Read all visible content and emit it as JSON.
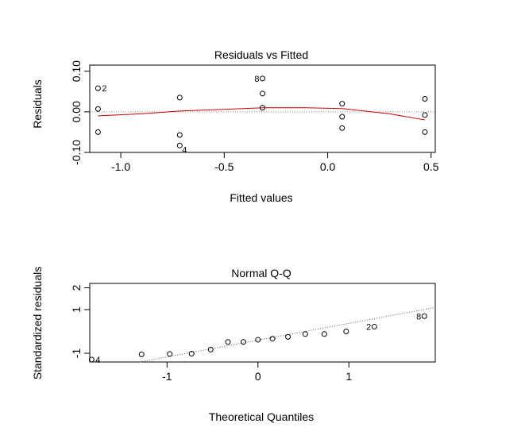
{
  "chart_data": [
    {
      "type": "scatter",
      "title": "Residuals vs Fitted",
      "xlabel": "Fitted values",
      "ylabel": "Residuals",
      "xlim": [
        -1.15,
        0.52
      ],
      "ylim": [
        -0.1,
        0.115
      ],
      "xticks": [
        -1.0,
        -0.5,
        0.0,
        0.5
      ],
      "xtick_labels": [
        "-1.0",
        "-0.5",
        "0.0",
        "0.5"
      ],
      "yticks": [
        -0.1,
        0.0,
        0.1
      ],
      "ytick_labels": [
        "-0.10",
        "0.00",
        "0.10"
      ],
      "points": [
        {
          "x": -1.11,
          "y": 0.058
        },
        {
          "x": -1.11,
          "y": 0.007
        },
        {
          "x": -1.11,
          "y": -0.05
        },
        {
          "x": -0.715,
          "y": 0.035
        },
        {
          "x": -0.715,
          "y": -0.057
        },
        {
          "x": -0.715,
          "y": -0.083
        },
        {
          "x": -0.315,
          "y": 0.082
        },
        {
          "x": -0.315,
          "y": 0.045
        },
        {
          "x": -0.315,
          "y": 0.01
        },
        {
          "x": 0.07,
          "y": 0.02
        },
        {
          "x": 0.07,
          "y": -0.012
        },
        {
          "x": 0.07,
          "y": -0.04
        },
        {
          "x": 0.47,
          "y": 0.032
        },
        {
          "x": 0.47,
          "y": -0.008
        },
        {
          "x": 0.47,
          "y": -0.05
        }
      ],
      "point_labels": [
        {
          "x": -1.11,
          "y": 0.058,
          "text": "2",
          "side": "right"
        },
        {
          "x": -0.715,
          "y": -0.083,
          "text": "4",
          "side": "below-right"
        },
        {
          "x": -0.315,
          "y": 0.082,
          "text": "8",
          "side": "left"
        }
      ],
      "smooth_line": {
        "color": "#cc0000",
        "x": [
          -1.11,
          -0.9,
          -0.715,
          -0.5,
          -0.315,
          -0.1,
          0.07,
          0.3,
          0.47
        ],
        "y": [
          -0.01,
          -0.005,
          0.002,
          0.006,
          0.01,
          0.01,
          0.008,
          -0.005,
          -0.02
        ]
      },
      "zero_line": true
    },
    {
      "type": "scatter",
      "title": "Normal Q-Q",
      "xlabel": "Theoretical Quantiles",
      "ylabel": "Standardized residuals",
      "xlim": [
        -1.85,
        1.95
      ],
      "ylim": [
        -1.4,
        2.2
      ],
      "xticks": [
        -1,
        0,
        1
      ],
      "xtick_labels": [
        "-1",
        "0",
        "1"
      ],
      "yticks": [
        -1,
        1,
        2
      ],
      "ytick_labels": [
        "-1",
        "1",
        "2"
      ],
      "points": [
        {
          "x": -1.83,
          "y": -1.72
        },
        {
          "x": -1.28,
          "y": -1.05
        },
        {
          "x": -0.97,
          "y": -1.03
        },
        {
          "x": -0.73,
          "y": -1.02
        },
        {
          "x": -0.52,
          "y": -0.83
        },
        {
          "x": -0.33,
          "y": -0.48
        },
        {
          "x": -0.16,
          "y": -0.48
        },
        {
          "x": 0.0,
          "y": -0.38
        },
        {
          "x": 0.16,
          "y": -0.33
        },
        {
          "x": 0.33,
          "y": -0.25
        },
        {
          "x": 0.52,
          "y": -0.12
        },
        {
          "x": 0.73,
          "y": -0.12
        },
        {
          "x": 0.97,
          "y": 0.0
        },
        {
          "x": 1.28,
          "y": 0.22
        },
        {
          "x": 1.83,
          "y": 0.7
        }
      ],
      "point_labels": [
        {
          "x": -1.83,
          "y": -1.72,
          "text": "4",
          "side": "right"
        },
        {
          "x": 1.28,
          "y": 0.22,
          "text": "2",
          "side": "left"
        },
        {
          "x": 1.83,
          "y": 0.7,
          "text": "8",
          "side": "left"
        }
      ],
      "reference_line": {
        "x": [
          -1.95,
          1.95
        ],
        "y": [
          -1.9,
          1.1
        ]
      }
    }
  ]
}
